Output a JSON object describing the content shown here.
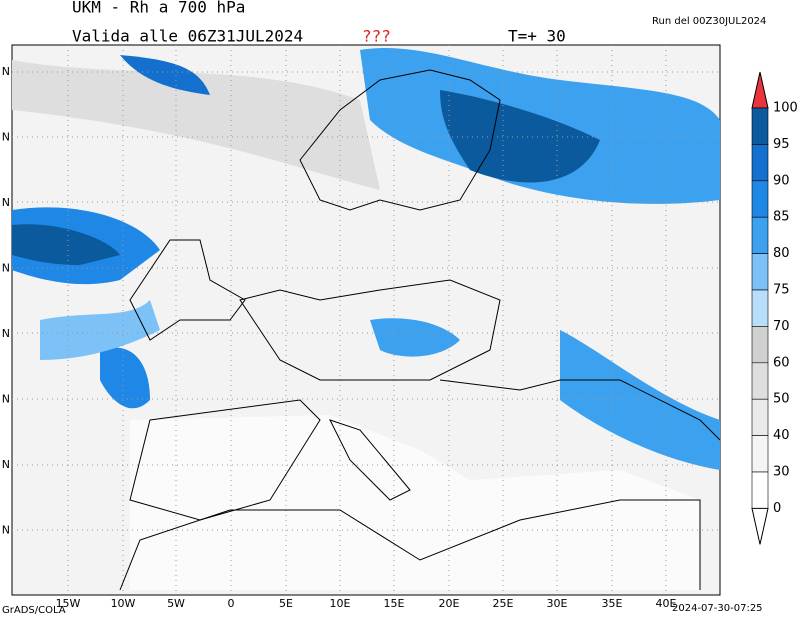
{
  "header": {
    "title": "UKM - Rh a 700 hPa",
    "valid": "Valida alle 06Z31JUL2024",
    "flag": "???",
    "step": "T=+ 30",
    "run": "Run del 00Z30JUL2024"
  },
  "colorbar": {
    "labels": [
      100,
      95,
      90,
      85,
      80,
      75,
      70,
      60,
      50,
      40,
      30,
      0
    ],
    "colors": [
      "#0b5a9e",
      "#1470cf",
      "#1f88e6",
      "#3ca1ef",
      "#7cc2f6",
      "#b8def9",
      "#d0d0d0",
      "#dedede",
      "#eaeaea",
      "#f4f4f4",
      "#ffffff"
    ],
    "over_color": "#e8343a",
    "under_color": "#ffffff"
  },
  "map": {
    "lon_labels": [
      "15W",
      "10W",
      "5W",
      "0",
      "5E",
      "10E",
      "15E",
      "20E",
      "25E",
      "30E",
      "35E",
      "40E"
    ],
    "lat_labels": [
      "N",
      "N",
      "N",
      "N",
      "N",
      "N",
      "N",
      "N"
    ]
  },
  "footer": {
    "left": "GrADS/COLA",
    "right": "2024-07-30-07:25"
  }
}
